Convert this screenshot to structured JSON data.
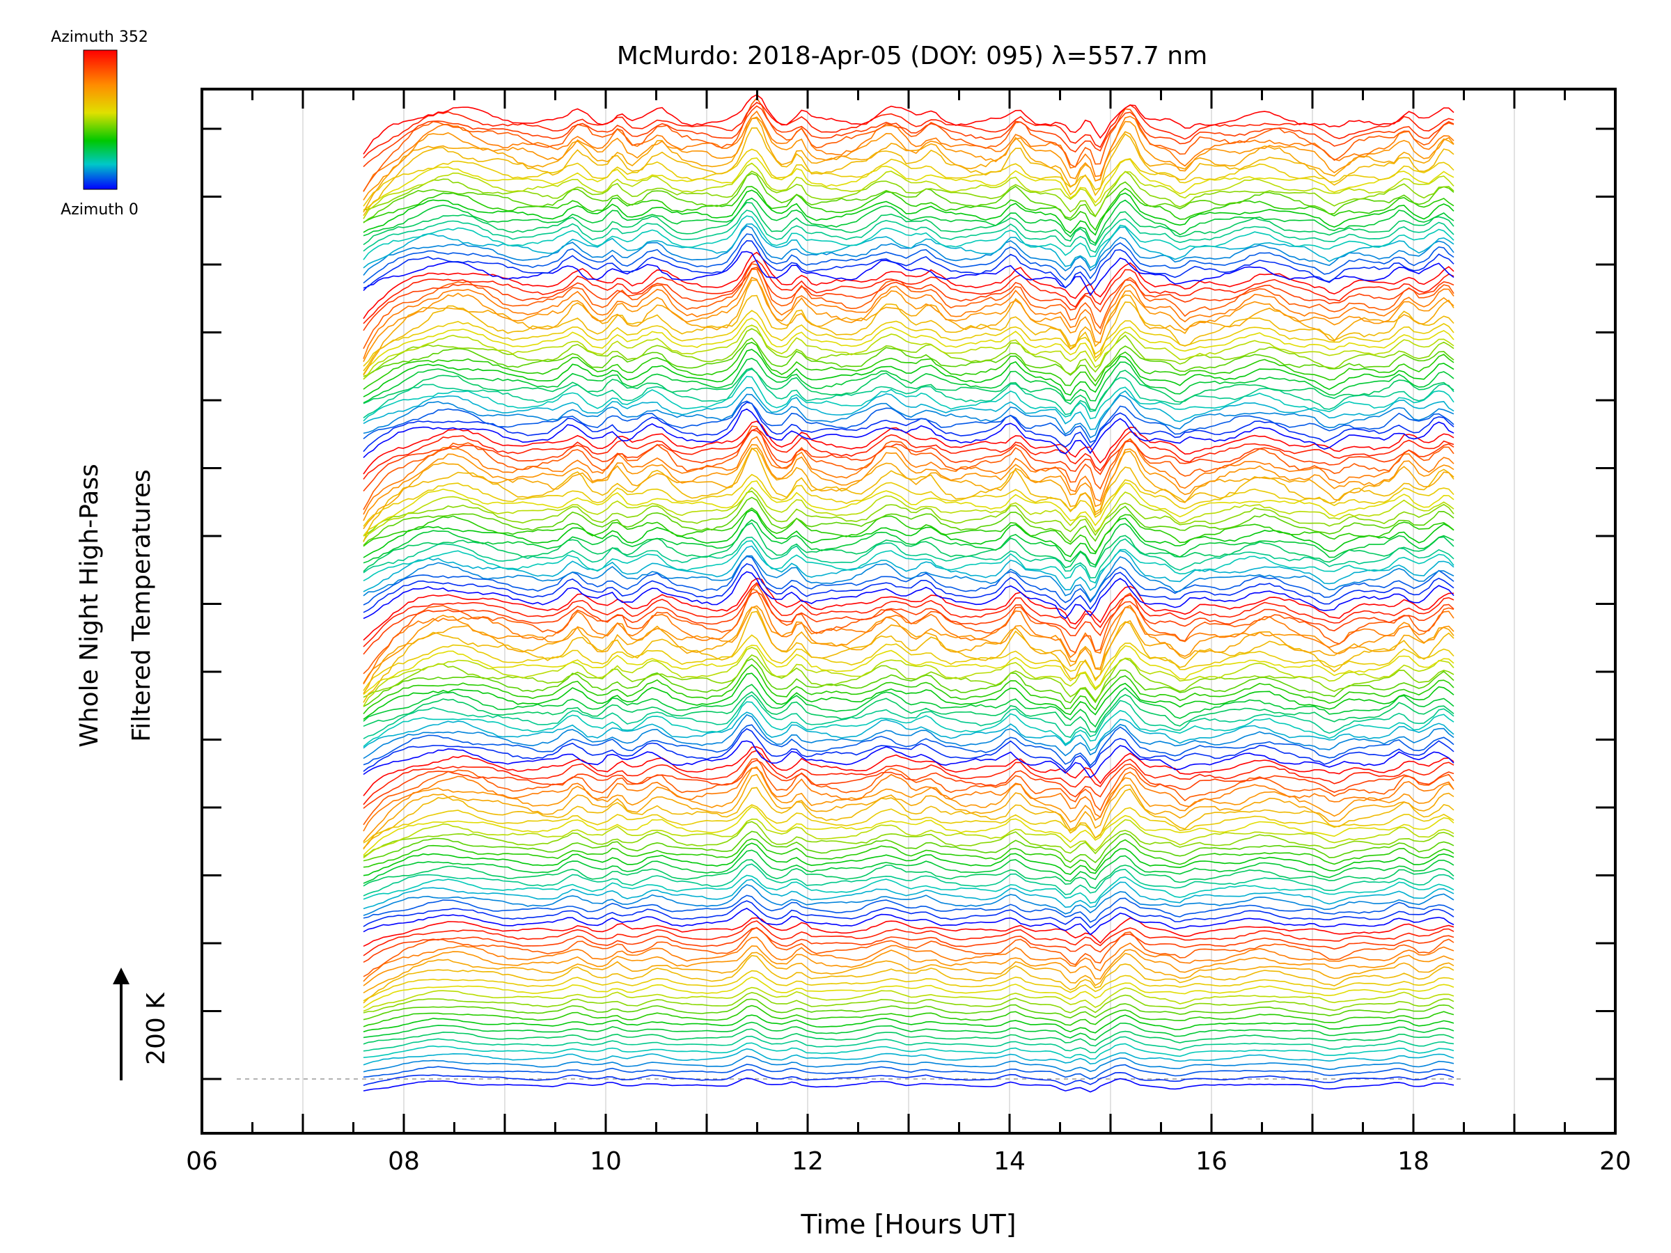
{
  "chart_data": {
    "type": "line",
    "title": "McMurdo: 2018-Apr-05 (DOY: 095) λ=557.7 nm",
    "xlabel": "Time [Hours UT]",
    "ylabel_line1": "Whole Night High-Pass",
    "ylabel_line2": "Filtered Temperatures",
    "xlim": [
      6,
      20
    ],
    "x_ticks": [
      6,
      8,
      10,
      12,
      14,
      16,
      18,
      20
    ],
    "x_tick_labels": [
      "06",
      "08",
      "10",
      "12",
      "14",
      "16",
      "18",
      "20"
    ],
    "x_minor_step": 0.5,
    "gridlines_x": [
      7,
      8,
      9,
      10,
      11,
      12,
      13,
      14,
      15,
      16,
      17,
      18,
      19
    ],
    "y_tick_count": 15,
    "data_start_hour": 7.6,
    "data_end_hour": 18.4,
    "n_traces": 144,
    "trace_step_K": 20,
    "scale_bar_label": "200 K",
    "scale_bar_K": 200,
    "colorbar": {
      "top_label": "Azimuth 352",
      "bottom_label": "Azimuth 0",
      "colors": [
        "#ff0000",
        "#ff8c00",
        "#e0e000",
        "#00c800",
        "#00c8c8",
        "#0000ff"
      ]
    },
    "common_features": [
      {
        "t": 8.4,
        "amp": 18,
        "w": 0.45
      },
      {
        "t": 9.7,
        "amp": 14,
        "w": 0.12
      },
      {
        "t": 10.1,
        "amp": 12,
        "w": 0.08
      },
      {
        "t": 10.5,
        "amp": 14,
        "w": 0.15
      },
      {
        "t": 11.45,
        "amp": 34,
        "w": 0.14
      },
      {
        "t": 11.9,
        "amp": 14,
        "w": 0.08
      },
      {
        "t": 12.8,
        "amp": 18,
        "w": 0.2
      },
      {
        "t": 13.2,
        "amp": 12,
        "w": 0.12
      },
      {
        "t": 14.05,
        "amp": 16,
        "w": 0.1
      },
      {
        "t": 14.6,
        "amp": -18,
        "w": 0.08
      },
      {
        "t": 14.85,
        "amp": -22,
        "w": 0.07
      },
      {
        "t": 15.15,
        "amp": 26,
        "w": 0.13
      },
      {
        "t": 15.7,
        "amp": -10,
        "w": 0.1
      },
      {
        "t": 16.5,
        "amp": 10,
        "w": 0.25
      },
      {
        "t": 17.2,
        "amp": -10,
        "w": 0.12
      },
      {
        "t": 17.9,
        "amp": 12,
        "w": 0.1
      },
      {
        "t": 18.3,
        "amp": 16,
        "w": 0.12
      }
    ]
  }
}
